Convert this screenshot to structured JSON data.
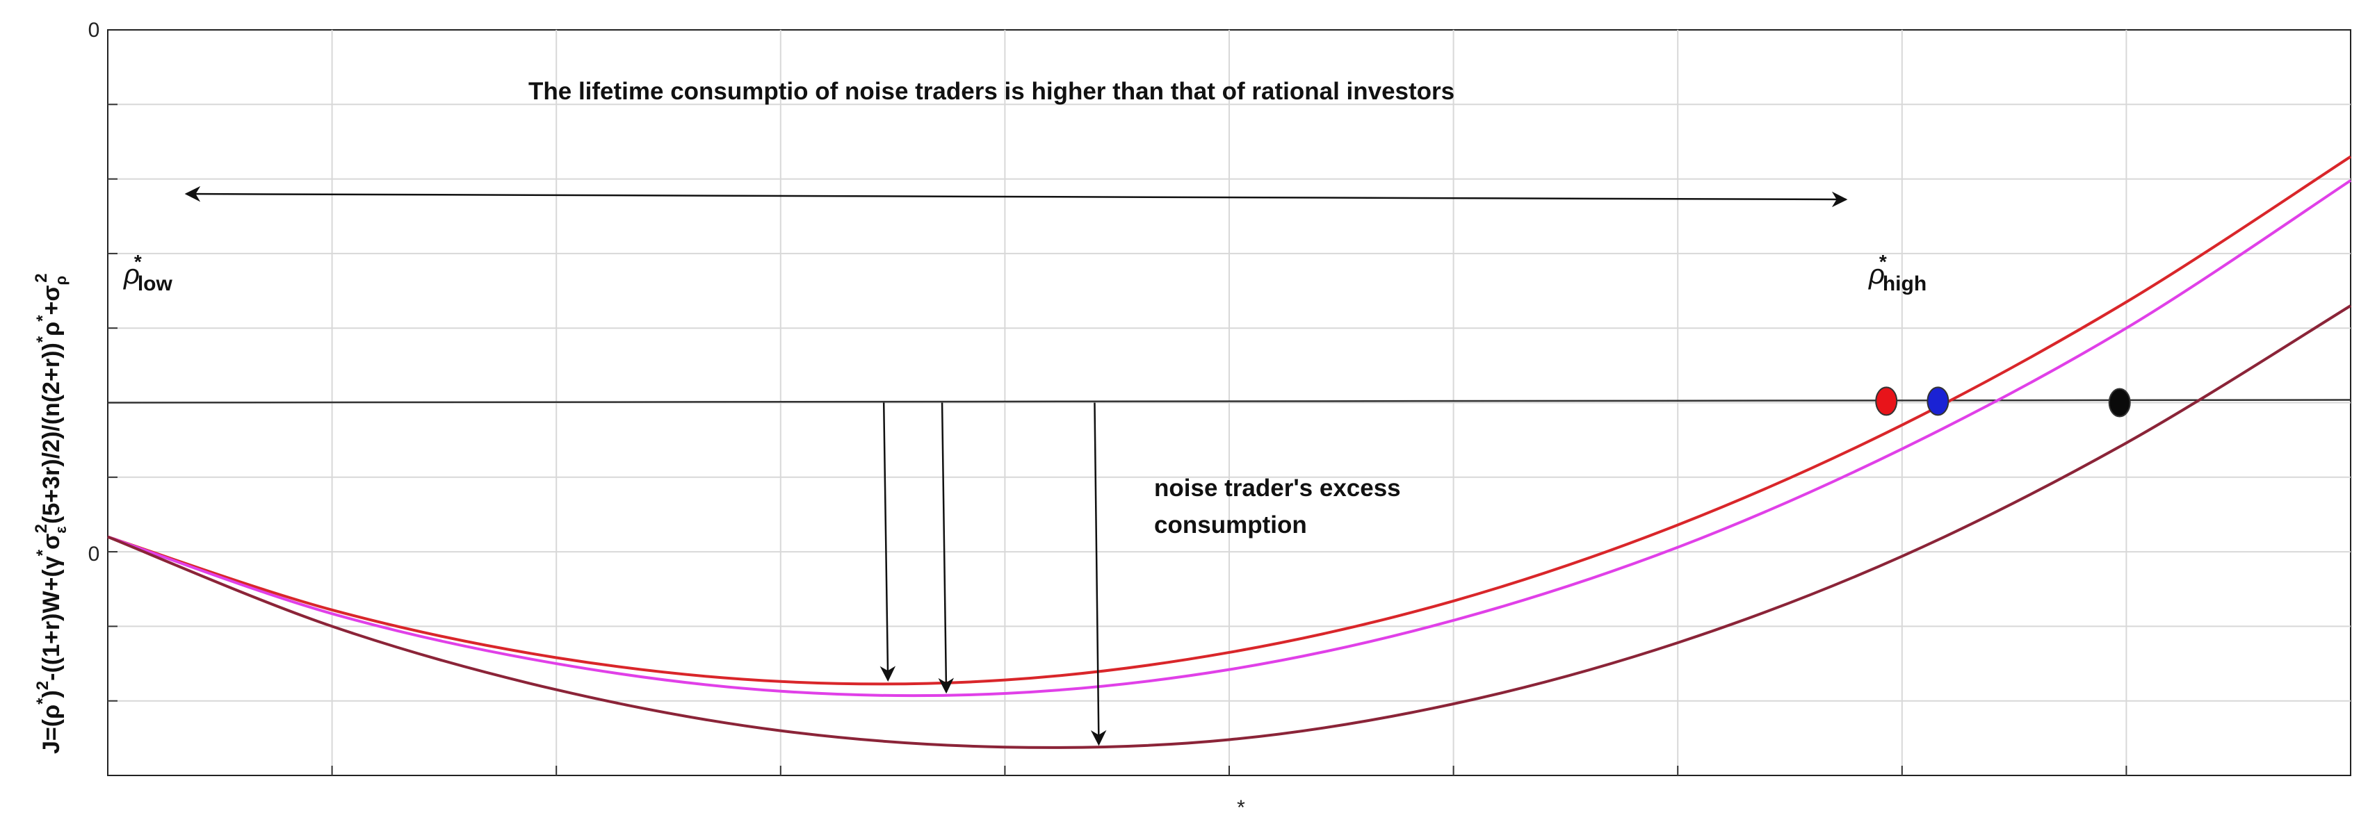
{
  "chart_data": {
    "type": "line",
    "title": "",
    "xlabel": "*",
    "ylabel_parts": {
      "a": "J=(ρ",
      "a_sup": "*",
      "b": ")",
      "b_sup": "2",
      "c": "-((1+r)W+(γ",
      "c_sup": "*",
      "d": "σ",
      "d_sub": "ε",
      "d_sup": "2",
      "e": "(5+3r)/2)/(n(2+r))",
      "e_sup": "*",
      "f": "ρ",
      "f_sup": "*",
      "g": "+σ",
      "g_sub": "ρ",
      "g_sup": "2"
    },
    "xlim": [
      0,
      10
    ],
    "ylim": [
      -3,
      7
    ],
    "ytick_labels": [
      "0",
      "0"
    ],
    "grid": true,
    "series": [
      {
        "color": "#d9262a",
        "x": [
          0,
          1,
          2,
          3,
          4,
          5,
          6,
          7,
          8,
          9,
          10
        ],
        "y": [
          0.2,
          -0.78,
          -1.42,
          -1.74,
          -1.72,
          -1.35,
          -0.66,
          0.36,
          1.7,
          3.35,
          5.3
        ]
      },
      {
        "color": "#e040e8",
        "x": [
          0,
          1,
          2,
          3,
          4,
          5,
          6,
          7,
          8,
          9,
          10
        ],
        "y": [
          0.2,
          -0.83,
          -1.5,
          -1.87,
          -1.9,
          -1.58,
          -0.92,
          0.06,
          1.38,
          3.0,
          4.98
        ]
      },
      {
        "color": "#8b2438",
        "x": [
          0,
          1,
          2,
          3,
          4,
          5,
          6,
          7,
          8,
          9,
          10
        ],
        "y": [
          0.2,
          -1.0,
          -1.85,
          -2.4,
          -2.62,
          -2.52,
          -2.04,
          -1.22,
          -0.06,
          1.46,
          3.3
        ]
      }
    ],
    "hline": {
      "y": 2.0,
      "color": "#333333"
    },
    "markers": [
      {
        "x": 7.93,
        "y": 2.02,
        "color": "#e8141a"
      },
      {
        "x": 8.16,
        "y": 2.02,
        "color": "#1a22d4"
      },
      {
        "x": 8.97,
        "y": 2.0,
        "color": "#0a0a0a"
      }
    ],
    "range_arrow": {
      "x1": 0.35,
      "x2": 7.75,
      "y": 4.8
    },
    "down_arrows": [
      {
        "x": 3.46,
        "y_top": 2.0,
        "y_bottom": -1.74
      },
      {
        "x": 3.72,
        "y_top": 2.0,
        "y_bottom": -1.9
      },
      {
        "x": 4.4,
        "y_top": 2.0,
        "y_bottom": -2.6
      }
    ],
    "annotations": {
      "top_note": "The lifetime consumptio of noise traders is higher than that of rational investors",
      "excess_line1": "noise trader's excess",
      "excess_line2": "consumption",
      "rho_low_symbol": "ρ",
      "rho_low_sup": "*",
      "rho_low_sub": "low",
      "rho_high_symbol": "ρ",
      "rho_high_sup": "*",
      "rho_high_sub": "high"
    },
    "colors": {
      "frame": "#222222",
      "grid": "#d8d8d8"
    }
  }
}
